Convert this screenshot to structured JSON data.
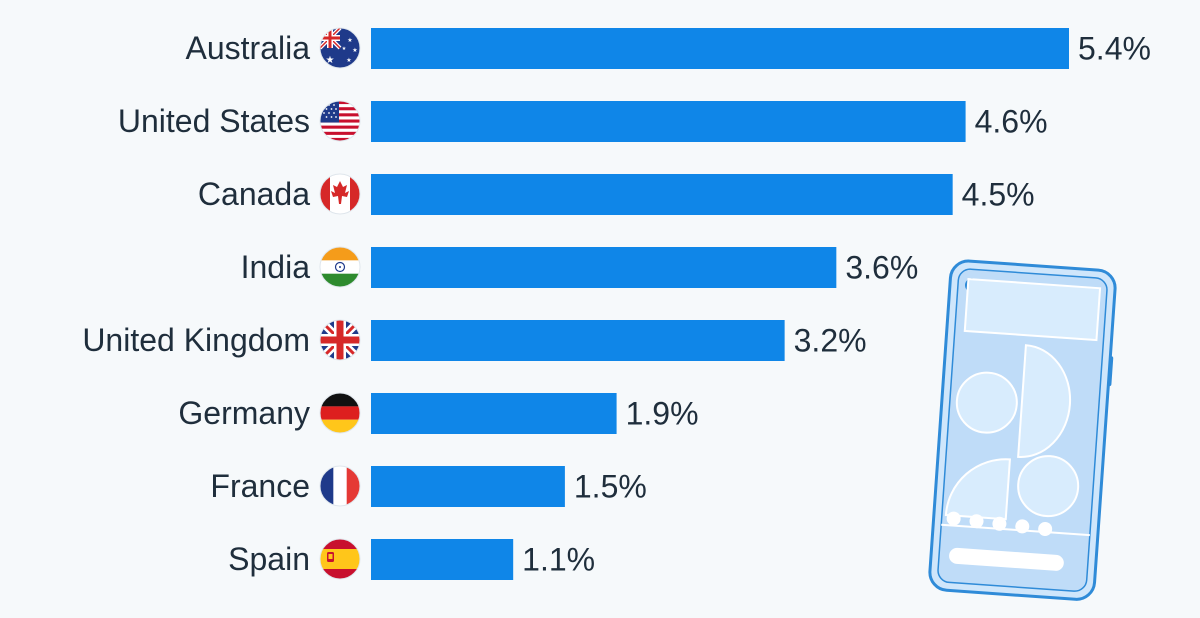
{
  "chart_data": {
    "type": "bar",
    "orientation": "horizontal",
    "categories": [
      "Australia",
      "United States",
      "Canada",
      "India",
      "United Kingdom",
      "Germany",
      "France",
      "Spain"
    ],
    "values": [
      5.4,
      4.6,
      4.5,
      3.6,
      3.2,
      1.9,
      1.5,
      1.1
    ],
    "value_labels": [
      "5.4%",
      "4.6%",
      "4.5%",
      "3.6%",
      "3.2%",
      "1.9%",
      "1.5%",
      "1.1%"
    ],
    "flags": [
      "australia-flag-icon",
      "usa-flag-icon",
      "canada-flag-icon",
      "india-flag-icon",
      "uk-flag-icon",
      "germany-flag-icon",
      "france-flag-icon",
      "spain-flag-icon"
    ],
    "xlim": [
      0,
      5.4
    ],
    "grid": false,
    "bar_color": "#0f86e8"
  },
  "illustration": {
    "icon": "smartphone-icon"
  }
}
